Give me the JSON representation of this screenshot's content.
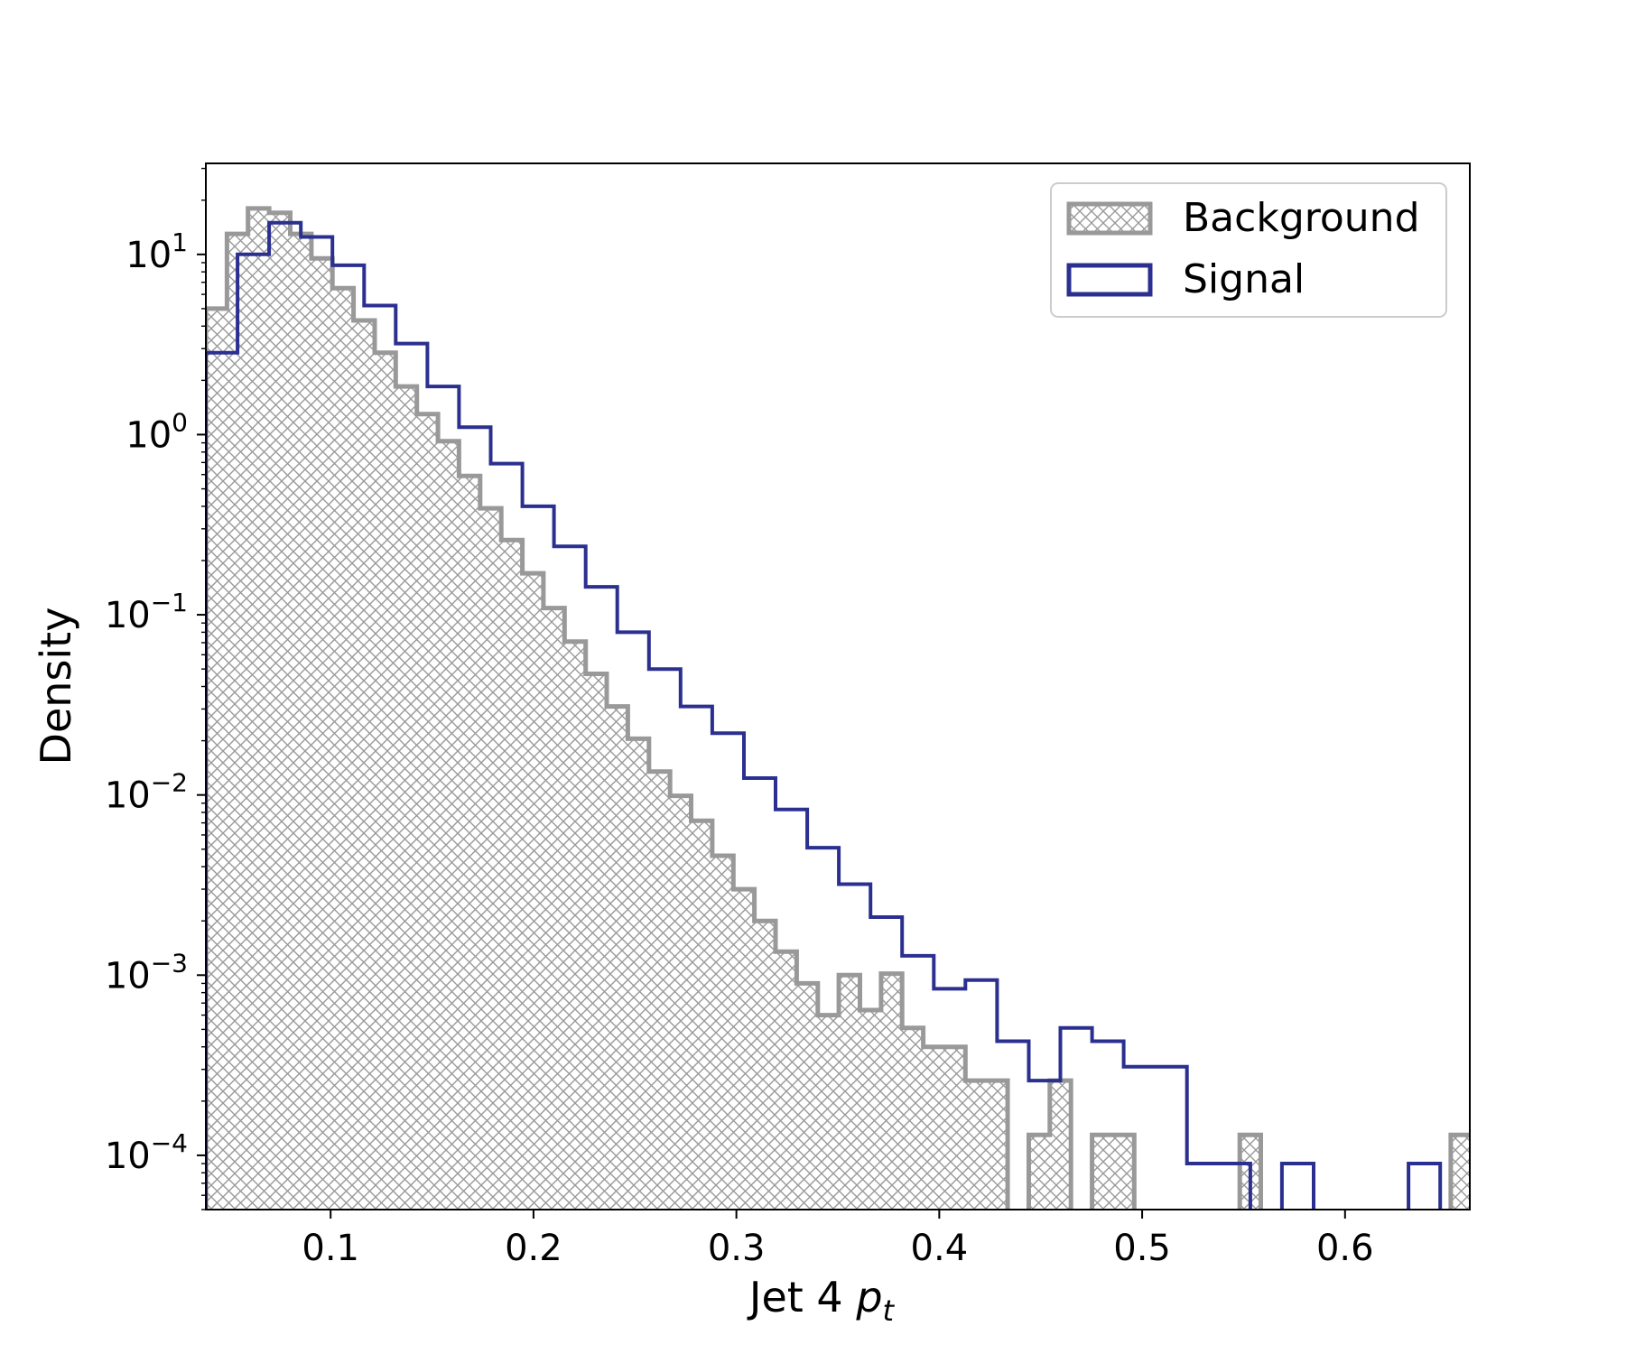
{
  "chart_data": {
    "type": "histogram",
    "xlabel_main": "Jet 4",
    "xlabel_var": "p",
    "xlabel_sub": "t",
    "ylabel": "Density",
    "yscale": "log",
    "xlim": [
      0.0385,
      0.6615
    ],
    "ylim": [
      5e-05,
      32
    ],
    "x_ticks": [
      {
        "value": 0.1,
        "label": "0.1"
      },
      {
        "value": 0.2,
        "label": "0.2"
      },
      {
        "value": 0.3,
        "label": "0.3"
      },
      {
        "value": 0.4,
        "label": "0.4"
      },
      {
        "value": 0.5,
        "label": "0.5"
      },
      {
        "value": 0.6,
        "label": "0.6"
      }
    ],
    "y_ticks": [
      {
        "value": 10,
        "base": "10",
        "exp": "1"
      },
      {
        "value": 1,
        "base": "10",
        "exp": "0"
      },
      {
        "value": 0.1,
        "base": "10",
        "exp": "−1"
      },
      {
        "value": 0.01,
        "base": "10",
        "exp": "−2"
      },
      {
        "value": 0.001,
        "base": "10",
        "exp": "−3"
      },
      {
        "value": 0.0001,
        "base": "10",
        "exp": "−4"
      }
    ],
    "background": {
      "name": "Background",
      "color": "#999999",
      "bin_start": 0.0385,
      "bin_width": 0.0104,
      "values": [
        5.0,
        13.0,
        18.0,
        17.0,
        13.0,
        9.5,
        6.5,
        4.3,
        2.85,
        1.85,
        1.3,
        0.92,
        0.59,
        0.39,
        0.26,
        0.17,
        0.109,
        0.071,
        0.047,
        0.031,
        0.0205,
        0.0135,
        0.0099,
        0.0072,
        0.0046,
        0.003,
        0.002,
        0.00135,
        0.0009,
        0.0006,
        0.001,
        0.00064,
        0.00102,
        0.00051,
        0.0004,
        0.0004,
        0.00026,
        0.00026,
        0,
        0.00013,
        0.00026,
        0,
        0.00013,
        0.00013,
        0,
        0,
        0,
        0,
        0,
        0.00013,
        0,
        0,
        0,
        0,
        0,
        0,
        0,
        0,
        0,
        0.00013
      ]
    },
    "signal": {
      "name": "Signal",
      "color": "#2b3090",
      "bin_start": 0.0385,
      "bin_width": 0.0156,
      "values": [
        2.85,
        10.0,
        15.0,
        12.5,
        8.7,
        5.2,
        3.2,
        1.85,
        1.1,
        0.69,
        0.4,
        0.24,
        0.143,
        0.08,
        0.05,
        0.031,
        0.022,
        0.0124,
        0.0083,
        0.0051,
        0.0032,
        0.0021,
        0.00128,
        0.00084,
        0.00094,
        0.00043,
        0.00026,
        0.00051,
        0.00043,
        0.00031,
        0.00031,
        9e-05,
        9e-05,
        0,
        9e-05,
        0,
        0,
        0,
        9e-05,
        0,
        0
      ]
    }
  }
}
